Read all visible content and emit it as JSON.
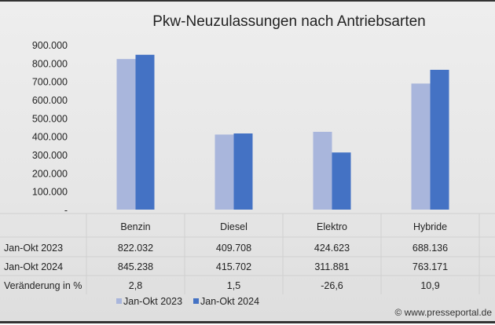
{
  "chart_data": {
    "type": "bar",
    "title": "Pkw-Neuzulassungen nach Antriebsarten",
    "categories": [
      "Benzin",
      "Diesel",
      "Elektro",
      "Hybride"
    ],
    "series": [
      {
        "name": "Jan-Okt 2023",
        "values": [
          822032,
          409708,
          424623,
          688136
        ],
        "color": "#a9b6dc"
      },
      {
        "name": "Jan-Okt 2024",
        "values": [
          845238,
          415702,
          311881,
          763171
        ],
        "color": "#4472c4"
      }
    ],
    "ylim": [
      0,
      900000
    ],
    "yticks": [
      "-",
      "100.000",
      "200.000",
      "300.000",
      "400.000",
      "500.000",
      "600.000",
      "700.000",
      "800.000",
      "900.000"
    ],
    "legend": "bottom",
    "table": {
      "rows": [
        {
          "label": "Jan-Okt 2023",
          "cells": [
            "822.032",
            "409.708",
            "424.623",
            "688.136"
          ]
        },
        {
          "label": "Jan-Okt 2024",
          "cells": [
            "845.238",
            "415.702",
            "311.881",
            "763.171"
          ]
        },
        {
          "label": "Veränderung in %",
          "cells": [
            "2,8",
            "1,5",
            "-26,6",
            "10,9"
          ]
        }
      ]
    }
  },
  "credit": "© www.presseportal.de"
}
